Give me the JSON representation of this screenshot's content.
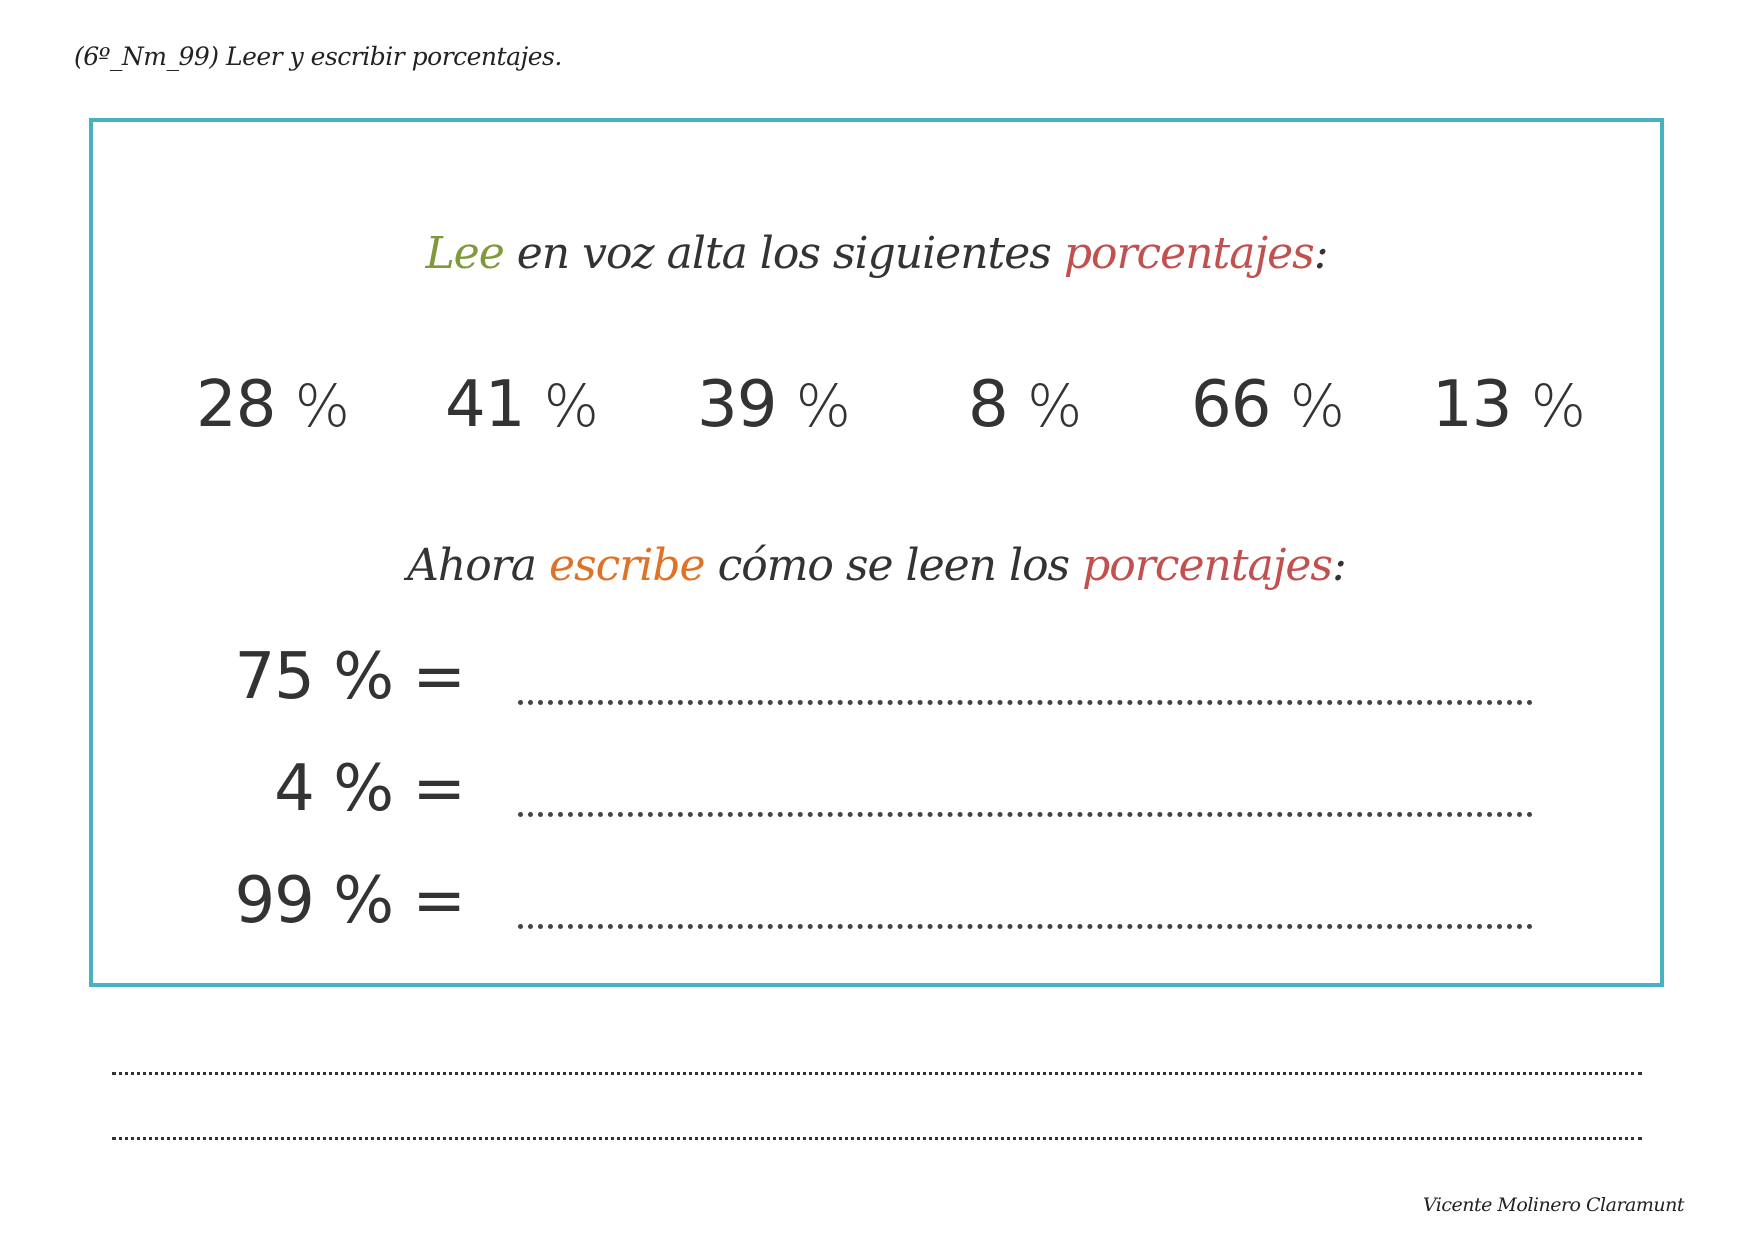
{
  "header": {
    "title": "(6º_Nm_99) Leer y escribir porcentajes."
  },
  "instruction_read": {
    "word1": "Lee",
    "middle": " en voz alta los siguientes ",
    "word2": "porcentajes",
    "end": ":"
  },
  "read_percentages": [
    {
      "value": "28",
      "symbol": "%"
    },
    {
      "value": "41",
      "symbol": "%"
    },
    {
      "value": "39",
      "symbol": "%"
    },
    {
      "value": "8",
      "symbol": "%"
    },
    {
      "value": "66",
      "symbol": "%"
    },
    {
      "value": "13",
      "symbol": "%"
    }
  ],
  "instruction_write": {
    "start": "Ahora ",
    "word1": "escribe",
    "middle": " cómo se leen los ",
    "word2": "porcentajes",
    "end": ":"
  },
  "write_percentages": [
    {
      "label": "75 % ="
    },
    {
      "label": "4 % ="
    },
    {
      "label": "99 % ="
    }
  ],
  "colors": {
    "border": "#49b1bf",
    "green": "#7f9a3c",
    "red": "#c2504f",
    "orange": "#df7226"
  },
  "footer": {
    "author": "Vicente Molinero Claramunt"
  }
}
